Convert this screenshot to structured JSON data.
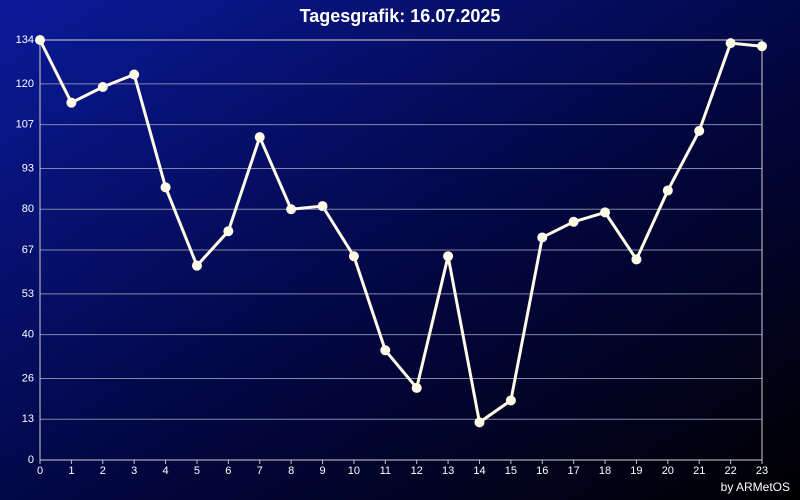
{
  "chart_data": {
    "type": "line",
    "title": "Tagesgrafik: 16.07.2025",
    "credit": "by ARMetOS",
    "x": [
      0,
      1,
      2,
      3,
      4,
      5,
      6,
      7,
      8,
      9,
      10,
      11,
      12,
      13,
      14,
      15,
      16,
      17,
      18,
      19,
      20,
      21,
      22,
      23
    ],
    "values": [
      134,
      114,
      119,
      123,
      87,
      62,
      73,
      103,
      80,
      81,
      65,
      35,
      23,
      65,
      12,
      19,
      71,
      76,
      79,
      64,
      86,
      105,
      133,
      132
    ],
    "color": "#fffbe6",
    "xlim": [
      0,
      23
    ],
    "xticks": [
      0,
      1,
      2,
      3,
      4,
      5,
      6,
      7,
      8,
      9,
      10,
      11,
      12,
      13,
      14,
      15,
      16,
      17,
      18,
      19,
      20,
      21,
      22,
      23
    ],
    "ylim": [
      0,
      134
    ],
    "yticks": [
      0,
      13,
      26,
      40,
      53,
      67,
      80,
      93,
      107,
      120,
      134
    ],
    "grid": true
  }
}
